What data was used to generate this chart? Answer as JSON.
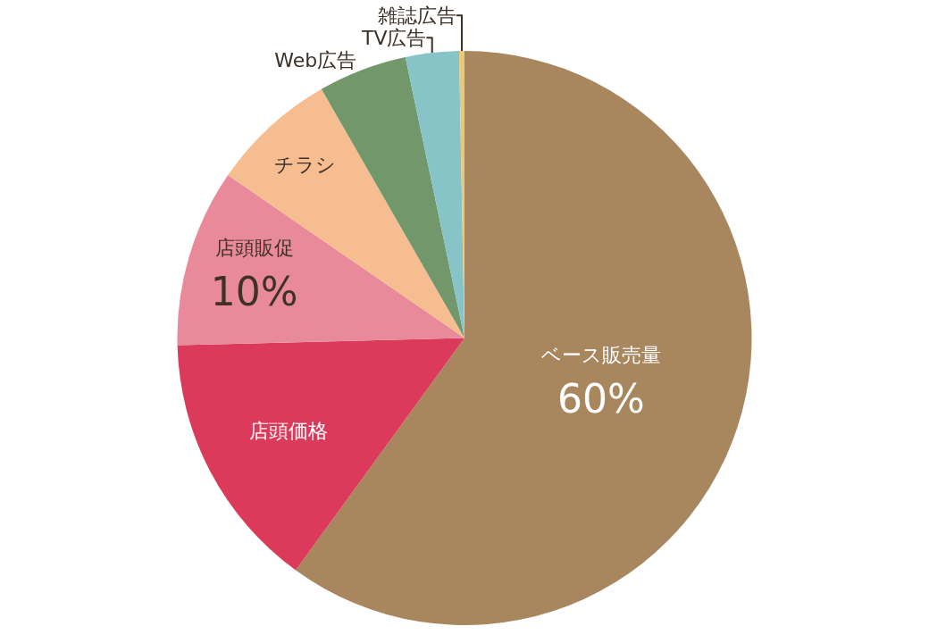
{
  "chart_data": {
    "type": "pie",
    "categories": [
      "ベース販売量",
      "店頭価格",
      "店頭販促",
      "チラシ",
      "Web広告",
      "TV広告",
      "雑誌広告"
    ],
    "values": [
      60,
      14.6,
      10,
      7.1,
      5,
      3,
      0.3
    ],
    "colors": [
      "#a8875f",
      "#db3a5a",
      "#e88a9a",
      "#f6bd90",
      "#71976a",
      "#86c4c8",
      "#e8c97a"
    ],
    "value_labels": [
      "60%",
      null,
      "10%",
      null,
      null,
      null,
      null
    ],
    "legend": false
  }
}
